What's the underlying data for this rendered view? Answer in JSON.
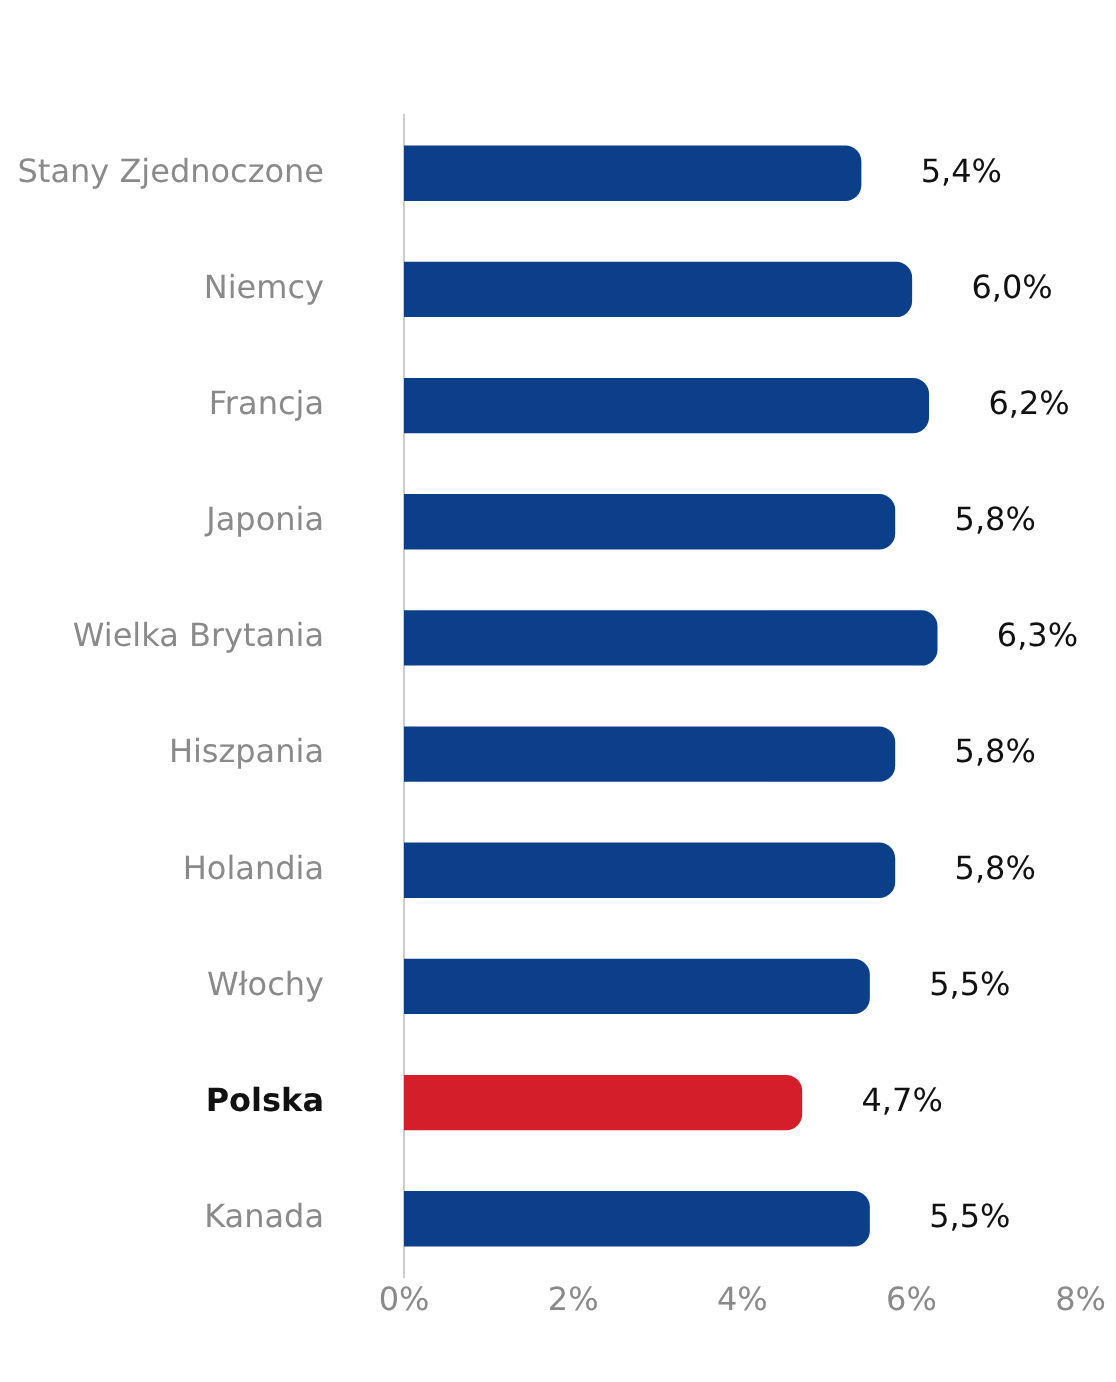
{
  "chart_data": {
    "type": "bar",
    "orientation": "horizontal",
    "categories": [
      "Stany Zjednoczone",
      "Niemcy",
      "Francja",
      "Japonia",
      "Wielka Brytania",
      "Hiszpania",
      "Holandia",
      "Włochy",
      "Polska",
      "Kanada"
    ],
    "values": [
      5.4,
      6.0,
      6.2,
      5.8,
      6.3,
      5.8,
      5.8,
      5.5,
      4.7,
      5.5
    ],
    "colors": [
      "#0b3f8a",
      "#0b3f8a",
      "#0b3f8a",
      "#0b3f8a",
      "#0b3f8a",
      "#0b3f8a",
      "#0b3f8a",
      "#0b3f8a",
      "#d41f2b",
      "#0b3f8a"
    ],
    "value_labels": [
      "5,4%",
      "6,0%",
      "6,2%",
      "5,8%",
      "6,3%",
      "5,8%",
      "5,8%",
      "5,5%",
      "4,7%",
      "5,5%"
    ],
    "xlim": [
      0,
      8
    ],
    "xticks": [
      {
        "value": 0,
        "label": "0%"
      },
      {
        "value": 2,
        "label": "2%"
      },
      {
        "value": 4,
        "label": "4%"
      },
      {
        "value": 6,
        "label": "6%"
      },
      {
        "value": 8,
        "label": "8%"
      }
    ],
    "grid": false,
    "legend": false
  }
}
